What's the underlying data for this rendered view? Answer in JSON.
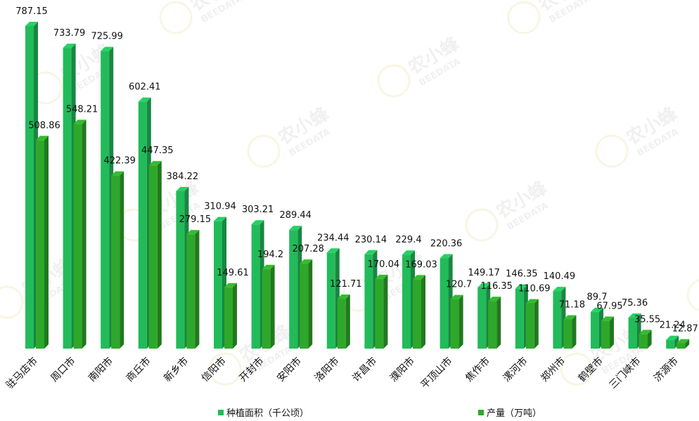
{
  "chart_data": {
    "type": "bar",
    "categories": [
      "驻马店市",
      "周口市",
      "南阳市",
      "商丘市",
      "新乡市",
      "信阳市",
      "开封市",
      "安阳市",
      "洛阳市",
      "许昌市",
      "濮阳市",
      "平顶山市",
      "焦作市",
      "漯河市",
      "郑州市",
      "鹤壁市",
      "三门峡市",
      "济源市"
    ],
    "series": [
      {
        "name": "种植面积（千公顷）",
        "color": "#22bb5a",
        "values": [
          787.15,
          733.79,
          725.99,
          602.41,
          384.22,
          310.94,
          303.21,
          289.44,
          234.44,
          230.14,
          229.4,
          220.36,
          149.17,
          146.35,
          140.49,
          89.7,
          75.36,
          21.24
        ],
        "labels": [
          "787.15",
          "733.79",
          "725.99",
          "602.41",
          "384.22",
          "310.94",
          "303.21",
          "289.44",
          "234.44",
          "230.14",
          "229.4",
          "220.36",
          "149.17",
          "146.35",
          "140.49",
          "89.7",
          "75.36",
          "21.24"
        ]
      },
      {
        "name": "产量（万吨）",
        "color": "#2ea82a",
        "values": [
          508.86,
          548.21,
          422.39,
          447.35,
          279.15,
          149.61,
          194.2,
          207.28,
          121.71,
          170.04,
          169.03,
          120.7,
          116.35,
          110.69,
          71.18,
          67.95,
          35.55,
          12.87
        ],
        "labels": [
          "508.86",
          "548.21",
          "422.39",
          "447.35",
          "279.15",
          "149.61",
          "194.2",
          "207.28",
          "121.71",
          "170.04",
          "169.03",
          "120.7",
          "116.35",
          "110.69",
          "71.18",
          "67.95",
          "35.55",
          "12.87"
        ]
      }
    ],
    "ylim": [
      0,
      800
    ],
    "grid": false,
    "legend_position": "bottom",
    "xlabel": "",
    "ylabel": "",
    "title": ""
  },
  "watermark": {
    "cn": "农小蜂",
    "en": "BEEDATA"
  }
}
